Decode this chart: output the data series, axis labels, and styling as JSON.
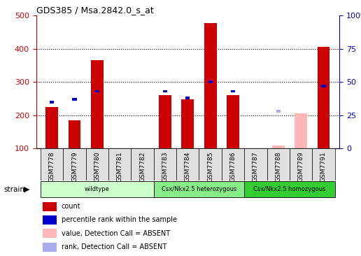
{
  "title": "GDS385 / Msa.2842.0_s_at",
  "samples": [
    "GSM7778",
    "GSM7779",
    "GSM7780",
    "GSM7781",
    "GSM7782",
    "GSM7783",
    "GSM7784",
    "GSM7785",
    "GSM7786",
    "GSM7787",
    "GSM7788",
    "GSM7789",
    "GSM7791"
  ],
  "count_values": [
    225,
    185,
    365,
    0,
    0,
    260,
    248,
    477,
    260,
    0,
    0,
    0,
    405
  ],
  "percentile_values": [
    35,
    37,
    43,
    0,
    0,
    43,
    38,
    50,
    43,
    0,
    0,
    0,
    47
  ],
  "absent_value": [
    0,
    0,
    0,
    0,
    0,
    0,
    0,
    0,
    0,
    0,
    108,
    205,
    0
  ],
  "absent_rank": [
    0,
    0,
    0,
    0,
    0,
    0,
    0,
    0,
    0,
    0,
    28,
    0,
    0
  ],
  "is_absent": [
    false,
    false,
    false,
    false,
    false,
    false,
    false,
    false,
    false,
    true,
    true,
    true,
    false
  ],
  "ylim_left": [
    100,
    500
  ],
  "ylim_right": [
    0,
    100
  ],
  "yticks_left": [
    100,
    200,
    300,
    400,
    500
  ],
  "yticks_right": [
    0,
    25,
    50,
    75,
    100
  ],
  "grid_lines": [
    200,
    300,
    400
  ],
  "groups": [
    {
      "label": "wildtype",
      "start": 0,
      "end": 5,
      "color": "#ccffcc"
    },
    {
      "label": "Csx/Nkx2.5 heterozygous",
      "start": 5,
      "end": 9,
      "color": "#88ee88"
    },
    {
      "label": "Csx/Nkx2.5 homozygous",
      "start": 9,
      "end": 13,
      "color": "#33cc33"
    }
  ],
  "bar_width": 0.55,
  "count_color": "#cc0000",
  "percentile_color": "#0000cc",
  "absent_value_color": "#ffb6b6",
  "absent_rank_color": "#aaaaee",
  "ylabel_left_color": "#cc0000",
  "ylabel_right_color": "#0000cc",
  "legend_items": [
    {
      "label": "count",
      "color": "#cc0000"
    },
    {
      "label": "percentile rank within the sample",
      "color": "#0000cc"
    },
    {
      "label": "value, Detection Call = ABSENT",
      "color": "#ffb6b6"
    },
    {
      "label": "rank, Detection Call = ABSENT",
      "color": "#aaaaee"
    }
  ]
}
